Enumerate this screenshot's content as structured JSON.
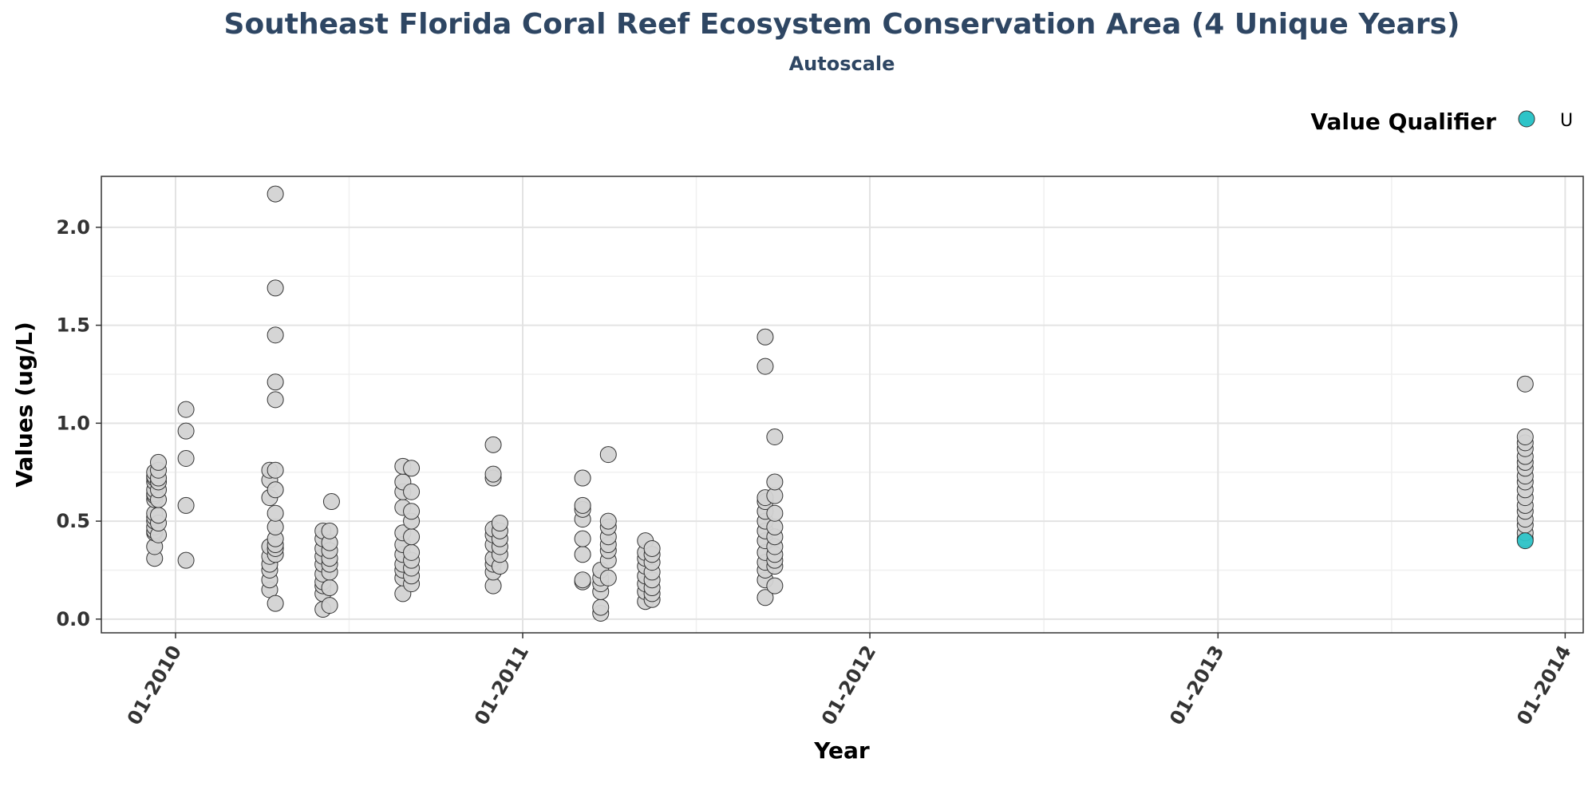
{
  "chart_data": {
    "type": "scatter",
    "title": "Southeast Florida Coral Reef Ecosystem Conservation Area (4 Unique Years)",
    "subtitle": "Autoscale",
    "xlabel": "Year",
    "ylabel": "Values (ug/L)",
    "x_ticks": [
      "01-2010",
      "01-2011",
      "01-2012",
      "01-2013",
      "01-2014"
    ],
    "y_ticks": [
      "0.0",
      "0.5",
      "1.0",
      "1.5",
      "2.0"
    ],
    "xlim": [
      "2009-10-15",
      "2014-01-20"
    ],
    "ylim": [
      -0.07,
      2.26
    ],
    "grid": true,
    "legend": {
      "title": "Value Qualifier",
      "position": "top-right",
      "entries": [
        {
          "label": "U",
          "color": "#2ec4c8"
        }
      ]
    },
    "colors": {
      "default_point": "#d3d3d3",
      "qualifier_u": "#2ec4c8",
      "title": "#2e4663"
    },
    "series": [
      {
        "x": "2009-12-10",
        "values": [
          0.31,
          0.37,
          0.44,
          0.45,
          0.47,
          0.5,
          0.52,
          0.54,
          0.61,
          0.63,
          0.64,
          0.66,
          0.7,
          0.72,
          0.73,
          0.75
        ]
      },
      {
        "x": "2009-12-14",
        "values": [
          0.43,
          0.49,
          0.53,
          0.61,
          0.66,
          0.7,
          0.72,
          0.76,
          0.8
        ]
      },
      {
        "x": "2010-01-12",
        "values": [
          0.3,
          0.58,
          0.82,
          0.96,
          1.07
        ]
      },
      {
        "x": "2010-04-10",
        "values": [
          0.15,
          0.2,
          0.25,
          0.28,
          0.32,
          0.37,
          0.62,
          0.71,
          0.76
        ]
      },
      {
        "x": "2010-04-16",
        "values": [
          0.08,
          0.33,
          0.36,
          0.38,
          0.41,
          0.47,
          0.54,
          0.66,
          0.76,
          1.12,
          1.21,
          1.45,
          1.69,
          2.17
        ]
      },
      {
        "x": "2010-06-05",
        "values": [
          0.05,
          0.13,
          0.17,
          0.19,
          0.23,
          0.28,
          0.32,
          0.36,
          0.41,
          0.45
        ]
      },
      {
        "x": "2010-06-12",
        "values": [
          0.07,
          0.16,
          0.24,
          0.28,
          0.31,
          0.35,
          0.39,
          0.45
        ]
      },
      {
        "x": "2010-06-14",
        "values": [
          0.6
        ]
      },
      {
        "x": "2010-08-28",
        "values": [
          0.13,
          0.21,
          0.25,
          0.28,
          0.33,
          0.38,
          0.44,
          0.57,
          0.65,
          0.7,
          0.78
        ]
      },
      {
        "x": "2010-09-06",
        "values": [
          0.18,
          0.22,
          0.26,
          0.3,
          0.34,
          0.42,
          0.5,
          0.55,
          0.65,
          0.77
        ]
      },
      {
        "x": "2010-12-01",
        "values": [
          0.17,
          0.24,
          0.28,
          0.31,
          0.38,
          0.43,
          0.46,
          0.72,
          0.74,
          0.89
        ]
      },
      {
        "x": "2010-12-08",
        "values": [
          0.27,
          0.33,
          0.37,
          0.41,
          0.45,
          0.49
        ]
      },
      {
        "x": "2011-03-05",
        "values": [
          0.19,
          0.2,
          0.33,
          0.41,
          0.51,
          0.56,
          0.58,
          0.72
        ]
      },
      {
        "x": "2011-03-24",
        "values": [
          0.03,
          0.06,
          0.14,
          0.18,
          0.21,
          0.25
        ]
      },
      {
        "x": "2011-04-01",
        "values": [
          0.21,
          0.3,
          0.35,
          0.38,
          0.42,
          0.47,
          0.5,
          0.84
        ]
      },
      {
        "x": "2011-05-10",
        "values": [
          0.09,
          0.14,
          0.18,
          0.22,
          0.27,
          0.31,
          0.34,
          0.4
        ]
      },
      {
        "x": "2011-05-17",
        "values": [
          0.1,
          0.13,
          0.16,
          0.2,
          0.24,
          0.29,
          0.33,
          0.36
        ]
      },
      {
        "x": "2011-09-13",
        "values": [
          0.11,
          0.2,
          0.25,
          0.29,
          0.34,
          0.4,
          0.45,
          0.5,
          0.55,
          0.6,
          0.62,
          1.29,
          1.44
        ]
      },
      {
        "x": "2011-09-23",
        "values": [
          0.17,
          0.27,
          0.3,
          0.33,
          0.37,
          0.42,
          0.47,
          0.54,
          0.63,
          0.7,
          0.93
        ]
      },
      {
        "x": "2013-11-20",
        "values": [
          0.41,
          0.44,
          0.48,
          0.51,
          0.55,
          0.58,
          0.62,
          0.66,
          0.7,
          0.73,
          0.77,
          0.8,
          0.83,
          0.87,
          0.9,
          0.93,
          1.2
        ]
      },
      {
        "x": "2013-11-20",
        "qualifier": "U",
        "values": [
          0.4
        ]
      }
    ]
  }
}
